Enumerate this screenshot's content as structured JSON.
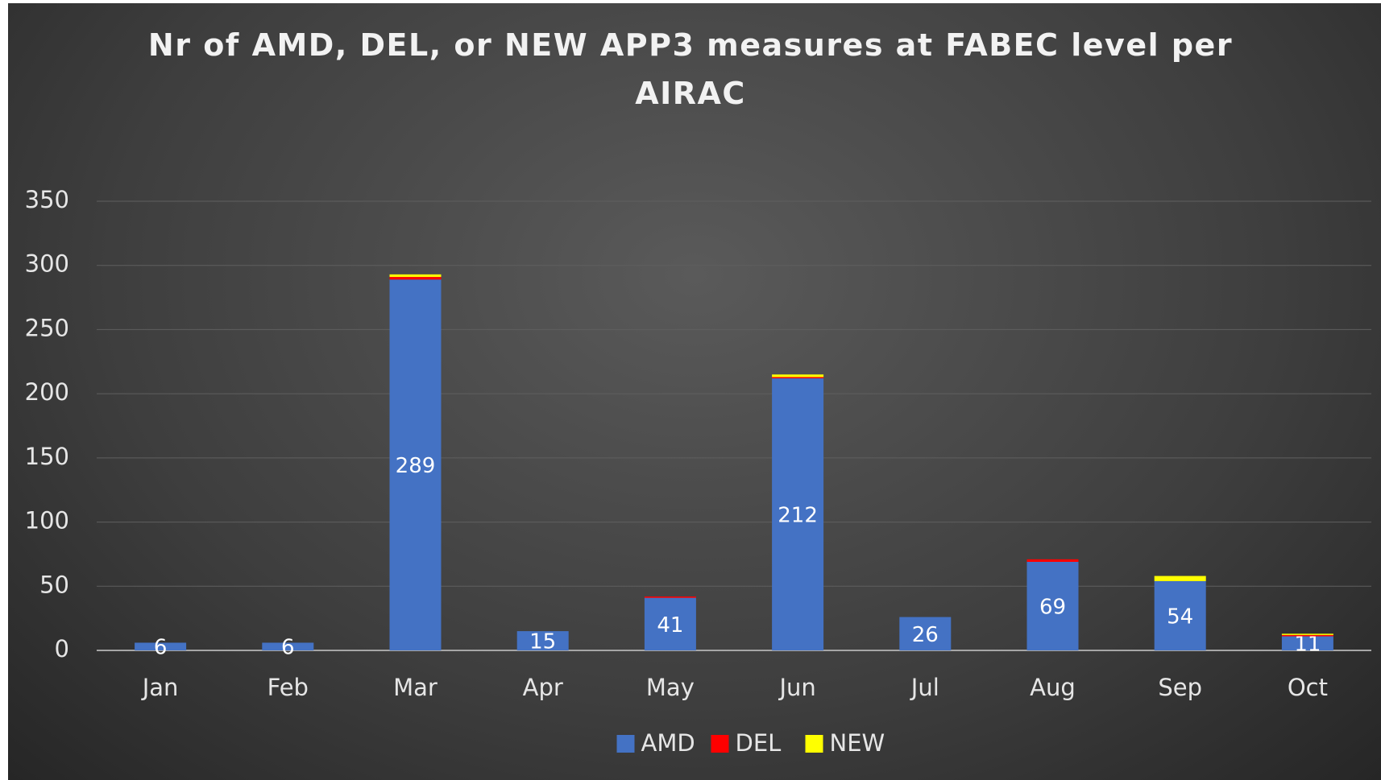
{
  "chart_data": {
    "type": "stacked_bar",
    "title": "Nr of AMD, DEL, or NEW APP3 measures at FABEC level per AIRAC",
    "categories": [
      "Jan",
      "Feb",
      "Mar",
      "Apr",
      "May",
      "Jun",
      "Jul",
      "Aug",
      "Sep",
      "Oct"
    ],
    "series": [
      {
        "name": "AMD",
        "color": "#4472c4",
        "values": [
          6,
          6,
          289,
          15,
          41,
          212,
          26,
          69,
          54,
          11
        ]
      },
      {
        "name": "DEL",
        "color": "#ff0000",
        "values": [
          0,
          0,
          2,
          0,
          1,
          1,
          0,
          2,
          0,
          1
        ]
      },
      {
        "name": "NEW",
        "color": "#ffff00",
        "values": [
          0,
          0,
          2,
          0,
          0,
          2,
          0,
          0,
          4,
          1
        ]
      }
    ],
    "data_labels_series": "AMD",
    "ylim": [
      0,
      350
    ],
    "yticks": [
      0,
      50,
      100,
      150,
      200,
      250,
      300,
      350
    ],
    "grid": true,
    "legend": "bottom"
  }
}
